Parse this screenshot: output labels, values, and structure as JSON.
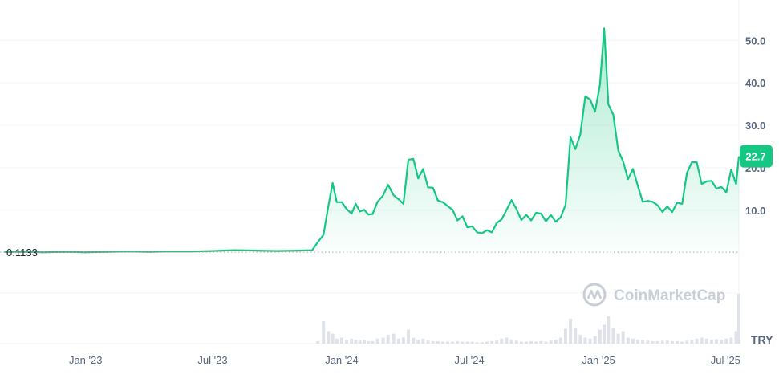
{
  "chart_data": {
    "type": "area",
    "currency": "TRY",
    "current_price": "22.7",
    "baseline_label": "0.1133",
    "baseline_value": 0.1133,
    "ylim": [
      -9.5,
      59.5
    ],
    "y_ticks": [
      "10.0",
      "20.0",
      "30.0",
      "40.0",
      "50.0"
    ],
    "y_tick_values": [
      10,
      20,
      30,
      40,
      50
    ],
    "x_range": [
      "2022-09-01",
      "2025-07-20"
    ],
    "x_ticks": [
      {
        "label": "Jan '23",
        "date": "2023-01-01"
      },
      {
        "label": "Jul '23",
        "date": "2023-07-01"
      },
      {
        "label": "Jan '24",
        "date": "2024-01-01"
      },
      {
        "label": "Jul '24",
        "date": "2024-07-01"
      },
      {
        "label": "Jan '25",
        "date": "2025-01-01"
      },
      {
        "label": "Jul '25",
        "date": "2025-07-01"
      }
    ],
    "line_color": "#16c784",
    "series": [
      {
        "x": [
          "2022-09-07",
          "2022-10-01",
          "2022-11-01",
          "2022-12-01",
          "2023-01-01",
          "2023-02-01",
          "2023-03-01",
          "2023-04-01",
          "2023-05-01",
          "2023-06-01",
          "2023-07-01",
          "2023-08-01",
          "2023-09-01",
          "2023-10-01",
          "2023-11-01",
          "2023-11-20",
          "2023-11-28",
          "2023-12-06",
          "2023-12-13",
          "2023-12-19",
          "2023-12-25",
          "2024-01-01",
          "2024-01-08",
          "2024-01-15",
          "2024-01-21",
          "2024-01-27",
          "2024-02-02",
          "2024-02-08",
          "2024-02-14",
          "2024-02-21",
          "2024-02-29",
          "2024-03-07",
          "2024-03-15",
          "2024-03-22",
          "2024-03-29",
          "2024-04-05",
          "2024-04-12",
          "2024-04-19",
          "2024-04-26",
          "2024-05-03",
          "2024-05-10",
          "2024-05-17",
          "2024-05-24",
          "2024-05-31",
          "2024-06-07",
          "2024-06-14",
          "2024-06-21",
          "2024-06-28",
          "2024-07-05",
          "2024-07-12",
          "2024-07-19",
          "2024-07-26",
          "2024-08-02",
          "2024-08-09",
          "2024-08-16",
          "2024-08-23",
          "2024-08-30",
          "2024-09-06",
          "2024-09-13",
          "2024-09-20",
          "2024-09-27",
          "2024-10-04",
          "2024-10-11",
          "2024-10-18",
          "2024-10-25",
          "2024-11-01",
          "2024-11-08",
          "2024-11-15",
          "2024-11-22",
          "2024-11-29",
          "2024-12-06",
          "2024-12-13",
          "2024-12-20",
          "2024-12-27",
          "2025-01-03",
          "2025-01-09",
          "2025-01-15",
          "2025-01-22",
          "2025-01-29",
          "2025-02-05",
          "2025-02-12",
          "2025-02-19",
          "2025-02-26",
          "2025-03-05",
          "2025-03-12",
          "2025-03-19",
          "2025-03-26",
          "2025-04-02",
          "2025-04-09",
          "2025-04-16",
          "2025-04-23",
          "2025-04-30",
          "2025-05-07",
          "2025-05-14",
          "2025-05-21",
          "2025-05-28",
          "2025-06-04",
          "2025-06-11",
          "2025-06-18",
          "2025-06-25",
          "2025-07-02",
          "2025-07-09",
          "2025-07-16",
          "2025-07-20"
        ],
        "y": [
          0.2,
          0.2,
          0.1,
          0.2,
          0.1,
          0.2,
          0.3,
          0.2,
          0.3,
          0.3,
          0.4,
          0.6,
          0.5,
          0.4,
          0.5,
          0.6,
          2.5,
          4.2,
          11.0,
          16.4,
          11.9,
          11.9,
          10.3,
          9.2,
          11.5,
          9.7,
          10.1,
          9.0,
          9.1,
          12.0,
          13.5,
          16.0,
          13.5,
          12.6,
          11.5,
          21.9,
          22.1,
          17.5,
          19.7,
          15.4,
          15.3,
          12.3,
          11.9,
          11.0,
          10.1,
          7.6,
          8.6,
          6.0,
          6.2,
          4.8,
          4.6,
          5.3,
          4.8,
          7.0,
          7.9,
          10.1,
          12.4,
          10.3,
          7.7,
          8.9,
          7.6,
          9.4,
          9.2,
          7.4,
          8.9,
          7.3,
          8.3,
          11.3,
          27.2,
          24.4,
          27.8,
          36.8,
          36.1,
          33.2,
          39.5,
          52.8,
          34.9,
          32.5,
          24.1,
          21.5,
          17.3,
          19.7,
          15.7,
          12.0,
          12.2,
          12.0,
          11.2,
          9.6,
          10.9,
          9.6,
          11.8,
          11.5,
          18.8,
          21.3,
          21.3,
          16.2,
          16.8,
          16.9,
          15.1,
          15.5,
          14.2,
          19.6,
          16.2,
          22.7
        ]
      }
    ],
    "volume_bars": {
      "x": [
        "2023-11-28",
        "2023-12-06",
        "2023-12-13",
        "2023-12-19",
        "2023-12-25",
        "2024-01-01",
        "2024-01-08",
        "2024-01-15",
        "2024-01-21",
        "2024-01-27",
        "2024-02-02",
        "2024-02-08",
        "2024-02-14",
        "2024-02-21",
        "2024-02-29",
        "2024-03-07",
        "2024-03-15",
        "2024-03-22",
        "2024-03-29",
        "2024-04-05",
        "2024-04-12",
        "2024-04-19",
        "2024-04-26",
        "2024-05-03",
        "2024-05-10",
        "2024-05-17",
        "2024-05-24",
        "2024-05-31",
        "2024-06-07",
        "2024-06-14",
        "2024-06-21",
        "2024-06-28",
        "2024-07-05",
        "2024-07-12",
        "2024-07-19",
        "2024-07-26",
        "2024-08-02",
        "2024-08-09",
        "2024-08-16",
        "2024-08-23",
        "2024-08-30",
        "2024-09-06",
        "2024-09-13",
        "2024-09-20",
        "2024-09-27",
        "2024-10-04",
        "2024-10-11",
        "2024-10-18",
        "2024-10-25",
        "2024-11-01",
        "2024-11-08",
        "2024-11-15",
        "2024-11-22",
        "2024-11-29",
        "2024-12-06",
        "2024-12-13",
        "2024-12-20",
        "2024-12-27",
        "2025-01-03",
        "2025-01-09",
        "2025-01-15",
        "2025-01-22",
        "2025-01-29",
        "2025-02-05",
        "2025-02-12",
        "2025-02-19",
        "2025-02-26",
        "2025-03-05",
        "2025-03-12",
        "2025-03-19",
        "2025-03-26",
        "2025-04-02",
        "2025-04-09",
        "2025-04-16",
        "2025-04-23",
        "2025-04-30",
        "2025-05-07",
        "2025-05-14",
        "2025-05-21",
        "2025-05-28",
        "2025-06-04",
        "2025-06-11",
        "2025-06-18",
        "2025-06-25",
        "2025-07-02",
        "2025-07-09",
        "2025-07-16",
        "2025-07-20"
      ],
      "v": [
        0.05,
        0.45,
        0.25,
        0.2,
        0.1,
        0.12,
        0.08,
        0.1,
        0.08,
        0.06,
        0.08,
        0.05,
        0.05,
        0.1,
        0.12,
        0.18,
        0.2,
        0.1,
        0.12,
        0.28,
        0.12,
        0.08,
        0.1,
        0.06,
        0.05,
        0.05,
        0.04,
        0.04,
        0.04,
        0.05,
        0.04,
        0.04,
        0.04,
        0.03,
        0.03,
        0.04,
        0.05,
        0.06,
        0.1,
        0.12,
        0.08,
        0.06,
        0.04,
        0.04,
        0.05,
        0.04,
        0.05,
        0.04,
        0.06,
        0.08,
        0.12,
        0.3,
        0.5,
        0.32,
        0.18,
        0.12,
        0.1,
        0.15,
        0.28,
        0.38,
        0.55,
        0.32,
        0.2,
        0.25,
        0.12,
        0.1,
        0.08,
        0.08,
        0.06,
        0.05,
        0.05,
        0.06,
        0.06,
        0.05,
        0.05,
        0.04,
        0.06,
        0.08,
        0.1,
        0.12,
        0.1,
        0.08,
        0.09,
        0.08,
        0.1,
        0.12,
        0.25,
        1.0
      ]
    },
    "watermark": "CoinMarketCap"
  }
}
